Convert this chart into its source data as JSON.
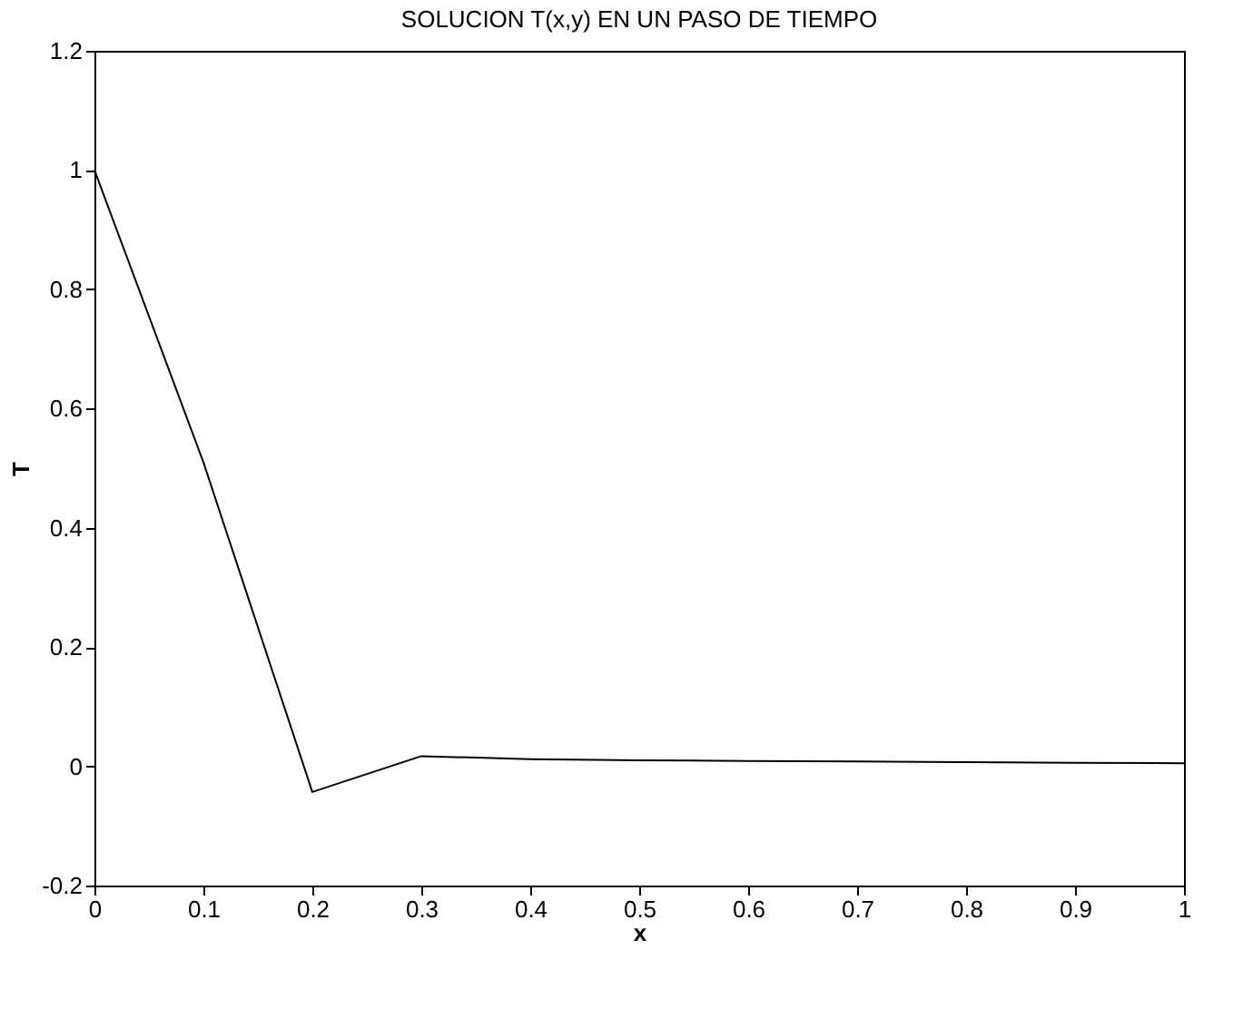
{
  "chart_data": {
    "type": "line",
    "title": "SOLUCION T(x,y) EN UN PASO DE TIEMPO",
    "xlabel": "x",
    "ylabel": "T",
    "x": [
      0,
      0.1,
      0.2,
      0.3,
      0.4,
      0.5,
      0.6,
      0.7,
      0.8,
      0.9,
      1.0
    ],
    "series": [
      {
        "color": "#000000",
        "values": [
          1.0,
          0.51,
          -0.043,
          0.017,
          0.012,
          0.01,
          0.009,
          0.008,
          0.007,
          0.006,
          0.005
        ]
      }
    ],
    "xlim": [
      0,
      1
    ],
    "xticks": [
      0,
      0.1,
      0.2,
      0.3,
      0.4,
      0.5,
      0.6,
      0.7,
      0.8,
      0.9,
      1
    ],
    "ylim": [
      -0.2,
      1.2
    ],
    "yticks": [
      -0.2,
      0,
      0.2,
      0.4,
      0.6,
      0.8,
      1,
      1.2
    ],
    "grid": false,
    "marker": "none",
    "line_style": "solid"
  }
}
